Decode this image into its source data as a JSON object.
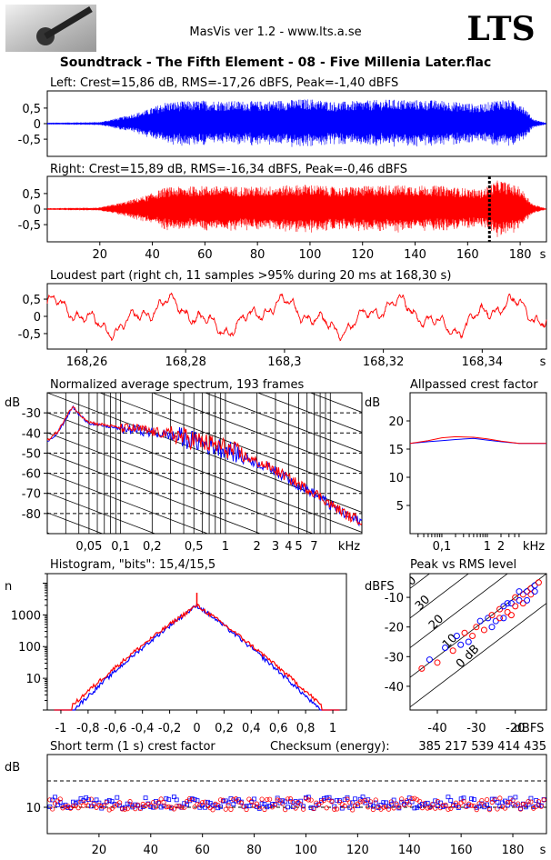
{
  "header": {
    "app_title": "MasVis ver 1.2 - www.lts.a.se",
    "brand": "LTS",
    "logo_icon": "microphone-photo-icon",
    "track_title": "Soundtrack - The Fifth Element - 08 - Five Millenia Later.flac"
  },
  "colors": {
    "left": "#0000ff",
    "right": "#ff0000",
    "axis": "#000000"
  },
  "chart_data": [
    {
      "id": "left",
      "type": "line",
      "title": "Left: Crest=15,86 dB, RMS=-17,26 dBFS, Peak=-1,40 dBFS",
      "yticks": [
        "0,5",
        "0",
        "-0,5"
      ],
      "ylim": [
        -1,
        1
      ],
      "xlim": [
        0,
        190
      ],
      "envelope_time": [
        0,
        20,
        30,
        38,
        45,
        60,
        80,
        100,
        110,
        130,
        150,
        165,
        172,
        180,
        185,
        190
      ],
      "envelope_amp": [
        0.03,
        0.05,
        0.25,
        0.45,
        0.7,
        0.75,
        0.72,
        0.8,
        0.7,
        0.78,
        0.75,
        0.62,
        0.8,
        0.7,
        0.15,
        0.02
      ]
    },
    {
      "id": "right",
      "type": "line",
      "title": "Right: Crest=15,89 dB, RMS=-16,34 dBFS, Peak=-0,46 dBFS",
      "yticks": [
        "0,5",
        "0",
        "-0,5"
      ],
      "ylim": [
        -1,
        1
      ],
      "xlim": [
        0,
        190
      ],
      "xticks": [
        "20",
        "40",
        "60",
        "80",
        "100",
        "120",
        "140",
        "160",
        "180"
      ],
      "xunit": "s",
      "marker_time": 168.3,
      "envelope_time": [
        0,
        20,
        30,
        38,
        45,
        60,
        80,
        100,
        110,
        130,
        150,
        165,
        172,
        180,
        185,
        190
      ],
      "envelope_amp": [
        0.03,
        0.05,
        0.25,
        0.45,
        0.7,
        0.75,
        0.72,
        0.8,
        0.7,
        0.78,
        0.75,
        0.62,
        0.95,
        0.7,
        0.15,
        0.02
      ]
    },
    {
      "id": "loudest",
      "type": "line",
      "title": "Loudest part (right ch, 11 samples >95% during 20 ms at 168,30 s)",
      "yticks": [
        "0,5",
        "0",
        "-0,5"
      ],
      "xticks": [
        "168,26",
        "168,28",
        "168,3",
        "168,32",
        "168,34"
      ],
      "xunit": "s",
      "xlim": [
        168.252,
        168.353
      ],
      "ylim": [
        -0.95,
        0.95
      ]
    },
    {
      "id": "spectrum",
      "type": "line",
      "title": "Normalized average spectrum, 193 frames",
      "ylabel": "dB",
      "yticks": [
        "-30",
        "-40",
        "-50",
        "-60",
        "-70",
        "-80"
      ],
      "ylim": [
        -90,
        -20
      ],
      "xticks": [
        "0,05",
        "0,1",
        "0,2",
        "0,5",
        "1",
        "2",
        "3",
        "4",
        "5",
        "7"
      ],
      "xunit": "kHz",
      "xlim": [
        0.02,
        20
      ],
      "freq_khz": [
        0.02,
        0.025,
        0.03,
        0.035,
        0.04,
        0.05,
        0.06,
        0.08,
        0.1,
        0.15,
        0.2,
        0.3,
        0.5,
        0.7,
        1,
        1.5,
        2,
        3,
        4,
        5,
        7,
        10,
        15,
        20
      ],
      "level_db": [
        -44,
        -40,
        -33,
        -27,
        -31,
        -35,
        -36,
        -37,
        -38,
        -38.5,
        -40,
        -41,
        -44,
        -46,
        -48,
        -52,
        -55,
        -59,
        -63,
        -66,
        -70,
        -76,
        -82,
        -84
      ]
    },
    {
      "id": "allpassed",
      "type": "line",
      "title": "Allpassed crest factor",
      "ylabel": "dB",
      "yticks": [
        "20",
        "15",
        "10",
        "5"
      ],
      "ylim": [
        0,
        25
      ],
      "xticks": [
        "0,1",
        "1",
        "2"
      ],
      "xunit": "kHz",
      "xlim": [
        0.02,
        20
      ],
      "freq_khz": [
        0.02,
        0.05,
        0.1,
        0.2,
        0.5,
        1,
        2,
        5,
        10,
        20
      ],
      "series": [
        {
          "color": "blue",
          "values": [
            16,
            16.3,
            16.5,
            16.7,
            16.9,
            16.6,
            16.3,
            16,
            16,
            16
          ]
        },
        {
          "color": "red",
          "values": [
            16,
            16.5,
            17,
            17.2,
            17.1,
            16.8,
            16.4,
            16,
            16,
            16
          ]
        }
      ]
    },
    {
      "id": "histogram",
      "type": "line",
      "title": "Histogram, \"bits\": 15,4/15,5",
      "ylabel": "n",
      "yticks": [
        "1000",
        "100",
        "10"
      ],
      "ylog": true,
      "ylim": [
        1,
        20000
      ],
      "xticks": [
        "-1",
        "-0,8",
        "-0,6",
        "-0,4",
        "-0,2",
        "0",
        "0,2",
        "0,4",
        "0,6",
        "0,8",
        "1"
      ],
      "xlim": [
        -1.1,
        1.1
      ],
      "peak_count": 2000,
      "spike_count": 5000
    },
    {
      "id": "peak_vs_rms",
      "type": "scatter",
      "title": "Peak vs RMS level",
      "ylabel": "dBFS",
      "xunit": "dBFS",
      "yticks": [
        "-10",
        "-20",
        "-30",
        "-40"
      ],
      "xticks": [
        "-40",
        "-30",
        "-20"
      ],
      "xlim": [
        -47,
        -12
      ],
      "ylim": [
        -48,
        -2
      ],
      "diag_labels": [
        "40",
        "30",
        "20",
        "10",
        "0 dB"
      ],
      "points": [
        [
          -44,
          -34
        ],
        [
          -42,
          -31
        ],
        [
          -40,
          -32
        ],
        [
          -38,
          -27
        ],
        [
          -36,
          -28
        ],
        [
          -35,
          -23
        ],
        [
          -33,
          -22
        ],
        [
          -32,
          -25
        ],
        [
          -30,
          -20
        ],
        [
          -29,
          -18
        ],
        [
          -28,
          -21
        ],
        [
          -27,
          -17
        ],
        [
          -26,
          -16
        ],
        [
          -25,
          -18
        ],
        [
          -24,
          -14
        ],
        [
          -23,
          -13
        ],
        [
          -22,
          -15
        ],
        [
          -21,
          -12
        ],
        [
          -20,
          -10
        ],
        [
          -19,
          -11
        ],
        [
          -18,
          -9
        ],
        [
          -17,
          -8
        ],
        [
          -16,
          -7
        ],
        [
          -15,
          -6
        ],
        [
          -14,
          -5
        ],
        [
          -34,
          -26
        ],
        [
          -31,
          -23
        ],
        [
          -26,
          -20
        ],
        [
          -24,
          -17
        ],
        [
          -22,
          -12
        ],
        [
          -20,
          -13
        ],
        [
          -19,
          -8
        ],
        [
          -18,
          -12
        ],
        [
          -17,
          -11
        ],
        [
          -16,
          -9
        ],
        [
          -15,
          -8
        ],
        [
          -21,
          -16
        ],
        [
          -23,
          -17
        ]
      ]
    },
    {
      "id": "short_term",
      "type": "scatter",
      "title": "Short term (1 s) crest factor",
      "checksum_label": "Checksum (energy):",
      "checksum_value": "385 217 539 414 435",
      "ylabel": "dB",
      "yticks": [
        "10"
      ],
      "ylim": [
        0,
        30
      ],
      "xticks": [
        "20",
        "40",
        "60",
        "80",
        "100",
        "120",
        "140",
        "160",
        "180"
      ],
      "xunit": "s",
      "xlim": [
        0,
        193
      ]
    }
  ]
}
